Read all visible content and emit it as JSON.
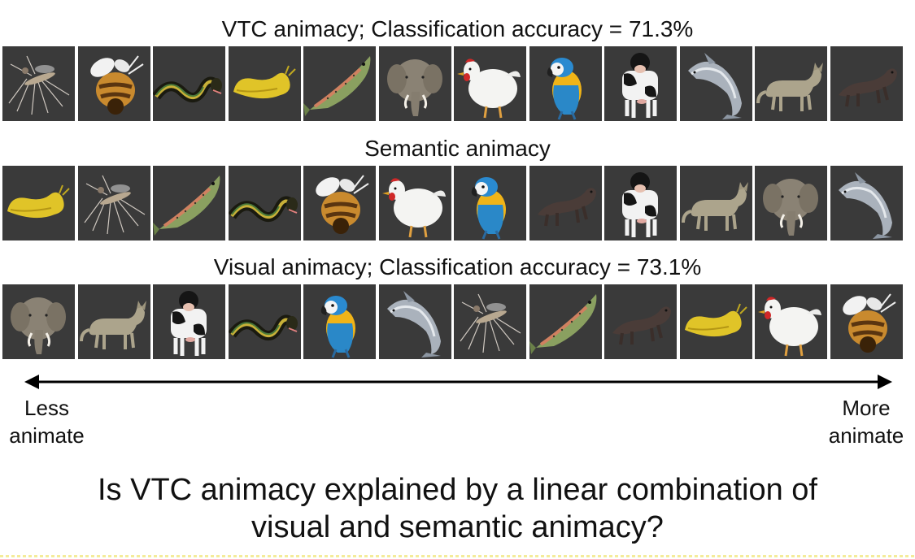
{
  "rows": [
    {
      "title": "VTC animacy; Classification accuracy = 71.3%",
      "animals": [
        "mosquito",
        "bee",
        "snake",
        "slug",
        "fish",
        "elephant",
        "chicken",
        "parrot",
        "cow",
        "dolphin",
        "cat",
        "ferret"
      ]
    },
    {
      "title": "Semantic animacy",
      "animals": [
        "slug",
        "mosquito",
        "fish",
        "snake",
        "bee",
        "chicken",
        "parrot",
        "ferret",
        "cow",
        "cat",
        "elephant",
        "dolphin"
      ]
    },
    {
      "title": "Visual animacy; Classification accuracy = 73.1%",
      "animals": [
        "elephant",
        "cat",
        "cow",
        "snake",
        "parrot",
        "dolphin",
        "mosquito",
        "fish",
        "ferret",
        "slug",
        "chicken",
        "bee"
      ]
    }
  ],
  "axis": {
    "left_label": "Less\nanimate",
    "right_label": "More\nanimate"
  },
  "question": "Is VTC animacy explained by a linear combination of\nvisual and semantic animacy?",
  "colors": {
    "tile_bg": "#3a3a3a",
    "text": "#111111"
  }
}
